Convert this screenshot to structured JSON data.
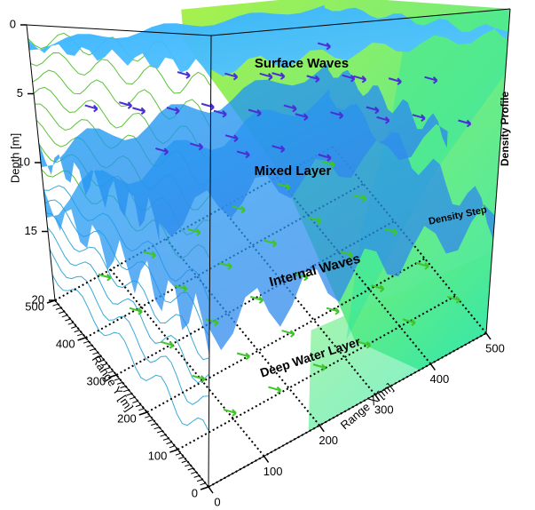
{
  "chart_data": {
    "type": "volume3d",
    "xlabel": "Range X [m]",
    "ylabel": "Range Y [m]",
    "zlabel": "Depth [m]",
    "xlim": [
      0,
      500
    ],
    "xticks": [
      0,
      100,
      200,
      300,
      400,
      500
    ],
    "ylim": [
      0,
      500
    ],
    "yticks": [
      0,
      100,
      200,
      300,
      400,
      500
    ],
    "zlim": [
      0,
      20
    ],
    "zticks": [
      0,
      5,
      10,
      15,
      20
    ],
    "annotations": [
      "Surface Waves",
      "Mixed Layer",
      "Internal Waves",
      "Deep Water Layer",
      "Density Profile",
      "Density Step"
    ],
    "grid": true
  }
}
